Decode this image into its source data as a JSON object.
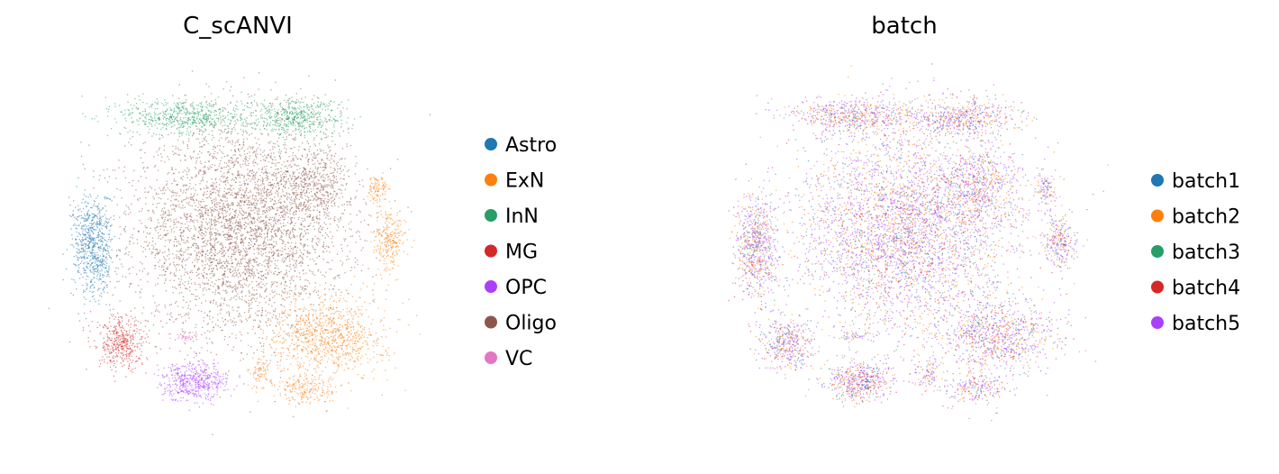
{
  "chart_data": [
    {
      "type": "scatter",
      "title": "C_scANVI",
      "xlabel": "",
      "ylabel": "",
      "grid": false,
      "axes_visible": false,
      "legend_position": "right",
      "legend": [
        {
          "name": "Astro",
          "color": "#1f77b4"
        },
        {
          "name": "ExN",
          "color": "#ff7f0e"
        },
        {
          "name": "InN",
          "color": "#279e68"
        },
        {
          "name": "MG",
          "color": "#d62728"
        },
        {
          "name": "OPC",
          "color": "#aa40fc"
        },
        {
          "name": "Oligo",
          "color": "#8c564b"
        },
        {
          "name": "VC",
          "color": "#e377c2"
        }
      ],
      "xlim": [
        0,
        1
      ],
      "ylim": [
        0,
        1
      ],
      "clusters": [
        {
          "category": "Oligo",
          "x": 0.5,
          "y": 0.56,
          "sx": 0.13,
          "sy": 0.14,
          "weight": 0.4
        },
        {
          "category": "Oligo",
          "x": 0.68,
          "y": 0.68,
          "sx": 0.05,
          "sy": 0.05,
          "weight": 0.05
        },
        {
          "category": "InN",
          "x": 0.37,
          "y": 0.86,
          "sx": 0.08,
          "sy": 0.025,
          "weight": 0.06
        },
        {
          "category": "InN",
          "x": 0.64,
          "y": 0.86,
          "sx": 0.06,
          "sy": 0.025,
          "weight": 0.05
        },
        {
          "category": "Astro",
          "x": 0.14,
          "y": 0.52,
          "sx": 0.025,
          "sy": 0.07,
          "weight": 0.07
        },
        {
          "category": "ExN",
          "x": 0.72,
          "y": 0.28,
          "sx": 0.07,
          "sy": 0.05,
          "weight": 0.09
        },
        {
          "category": "ExN",
          "x": 0.67,
          "y": 0.14,
          "sx": 0.04,
          "sy": 0.02,
          "weight": 0.02
        },
        {
          "category": "ExN",
          "x": 0.87,
          "y": 0.53,
          "sx": 0.02,
          "sy": 0.04,
          "weight": 0.025
        },
        {
          "category": "ExN",
          "x": 0.84,
          "y": 0.67,
          "sx": 0.012,
          "sy": 0.02,
          "weight": 0.01
        },
        {
          "category": "ExN",
          "x": 0.55,
          "y": 0.18,
          "sx": 0.015,
          "sy": 0.02,
          "weight": 0.008
        },
        {
          "category": "MG",
          "x": 0.21,
          "y": 0.26,
          "sx": 0.03,
          "sy": 0.035,
          "weight": 0.04
        },
        {
          "category": "OPC",
          "x": 0.39,
          "y": 0.16,
          "sx": 0.04,
          "sy": 0.025,
          "weight": 0.05
        },
        {
          "category": "VC",
          "x": 0.37,
          "y": 0.28,
          "sx": 0.02,
          "sy": 0.006,
          "weight": 0.004
        }
      ]
    },
    {
      "type": "scatter",
      "title": "batch",
      "xlabel": "",
      "ylabel": "",
      "grid": false,
      "axes_visible": false,
      "legend_position": "right",
      "legend": [
        {
          "name": "batch1",
          "color": "#1f77b4"
        },
        {
          "name": "batch2",
          "color": "#ff7f0e"
        },
        {
          "name": "batch3",
          "color": "#279e68"
        },
        {
          "name": "batch4",
          "color": "#d62728"
        },
        {
          "name": "batch5",
          "color": "#aa40fc"
        }
      ],
      "xlim": [
        0,
        1
      ],
      "ylim": [
        0,
        1
      ],
      "batch_mix": {
        "batch1": 0.12,
        "batch2": 0.28,
        "batch3": 0.05,
        "batch4": 0.12,
        "batch5": 0.43
      }
    }
  ]
}
